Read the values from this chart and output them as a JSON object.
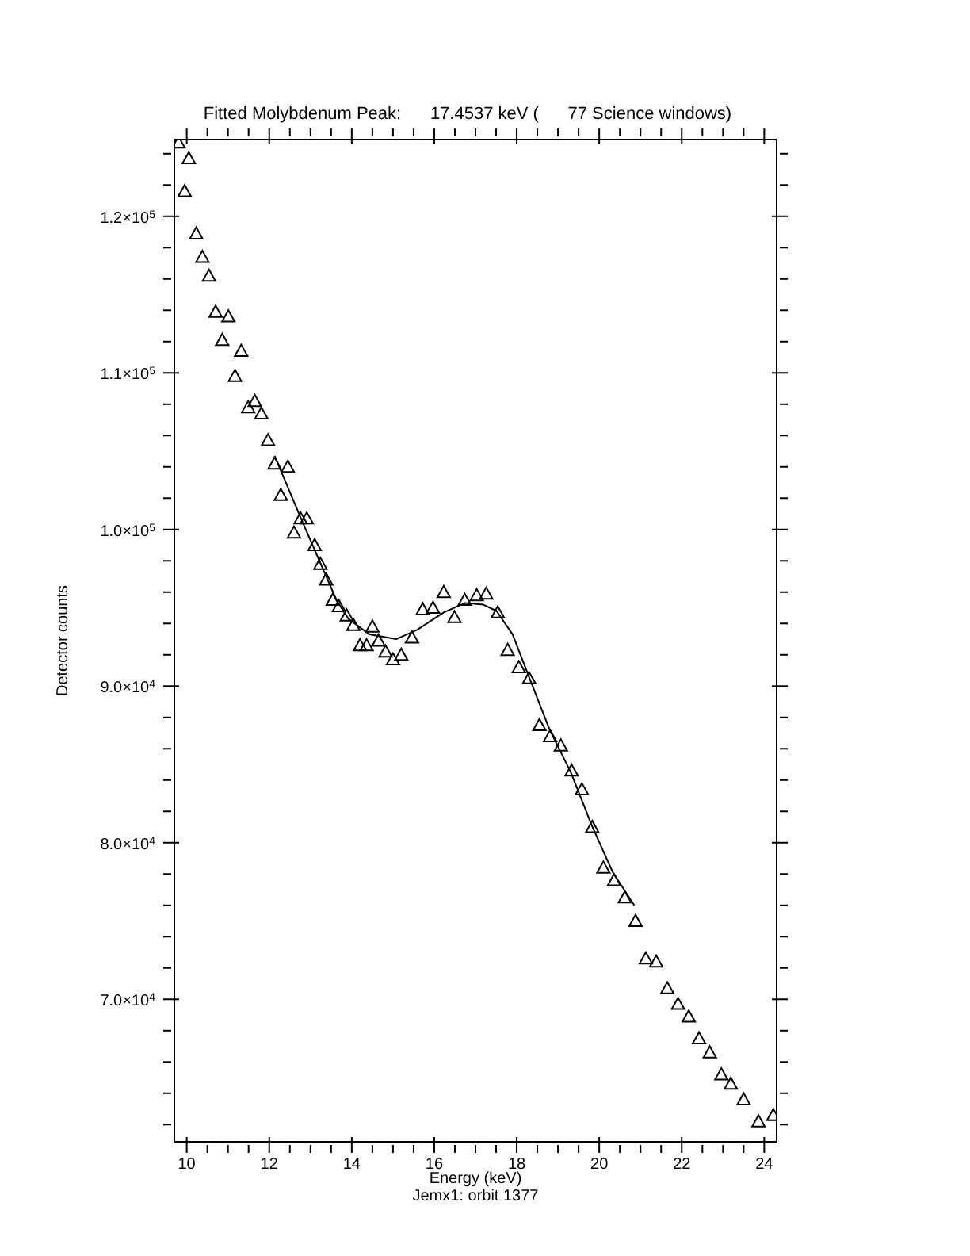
{
  "chart_data": {
    "type": "scatter",
    "title": "Fitted Molybdenum Peak:      17.4537 keV (      77 Science windows)",
    "xlabel": "Energy (keV)",
    "ylabel": "Detector counts",
    "annotations": [
      "Jemx1: orbit 1377"
    ],
    "marker": "triangle",
    "legend": false,
    "xlim": [
      9.7,
      24.3
    ],
    "ylim": [
      60900,
      124900
    ],
    "xticks": [
      10,
      {
        "value": 10.5,
        "label": null
      },
      {
        "value": 11,
        "label": null
      },
      {
        "value": 11.5,
        "label": null
      },
      12,
      {
        "value": 12.5,
        "label": null
      },
      {
        "value": 13,
        "label": null
      },
      {
        "value": 13.5,
        "label": null
      },
      14,
      {
        "value": 14.5,
        "label": null
      },
      {
        "value": 15,
        "label": null
      },
      {
        "value": 15.5,
        "label": null
      },
      16,
      {
        "value": 16.5,
        "label": null
      },
      {
        "value": 17,
        "label": null
      },
      {
        "value": 17.5,
        "label": null
      },
      18,
      {
        "value": 18.5,
        "label": null
      },
      {
        "value": 19,
        "label": null
      },
      {
        "value": 19.5,
        "label": null
      },
      20,
      {
        "value": 20.5,
        "label": null
      },
      {
        "value": 21,
        "label": null
      },
      {
        "value": 21.5,
        "label": null
      },
      22,
      {
        "value": 22.5,
        "label": null
      },
      {
        "value": 23,
        "label": null
      },
      {
        "value": 23.5,
        "label": null
      },
      24
    ],
    "yticks": [
      {
        "value": 62000,
        "label": null
      },
      {
        "value": 64000,
        "label": null
      },
      {
        "value": 66000,
        "label": null
      },
      {
        "value": 68000,
        "label": null
      },
      {
        "value": 70000,
        "label": "7.0×10$^{4}$"
      },
      {
        "value": 72000,
        "label": null
      },
      {
        "value": 74000,
        "label": null
      },
      {
        "value": 76000,
        "label": null
      },
      {
        "value": 78000,
        "label": null
      },
      {
        "value": 80000,
        "label": "8.0×10$^{4}$"
      },
      {
        "value": 82000,
        "label": null
      },
      {
        "value": 84000,
        "label": null
      },
      {
        "value": 86000,
        "label": null
      },
      {
        "value": 88000,
        "label": null
      },
      {
        "value": 90000,
        "label": "9.0×10$^{4}$"
      },
      {
        "value": 92000,
        "label": null
      },
      {
        "value": 94000,
        "label": null
      },
      {
        "value": 96000,
        "label": null
      },
      {
        "value": 98000,
        "label": null
      },
      {
        "value": 100000,
        "label": "1.0×10$^{5}$"
      },
      {
        "value": 102000,
        "label": null
      },
      {
        "value": 104000,
        "label": null
      },
      {
        "value": 106000,
        "label": null
      },
      {
        "value": 108000,
        "label": null
      },
      {
        "value": 110000,
        "label": "1.1×10$^{5}$"
      },
      {
        "value": 112000,
        "label": null
      },
      {
        "value": 114000,
        "label": null
      },
      {
        "value": 116000,
        "label": null
      },
      {
        "value": 118000,
        "label": null
      },
      {
        "value": 120000,
        "label": "1.2×10$^{5}$"
      },
      {
        "value": 122000,
        "label": null
      },
      {
        "value": 124000,
        "label": null
      }
    ],
    "series": [
      {
        "color": "#000000",
        "x": [
          9.8,
          9.95,
          10.05,
          10.23,
          10.38,
          10.54,
          10.7,
          10.86,
          11.01,
          11.17,
          11.32,
          11.49,
          11.65,
          11.81,
          11.97,
          12.13,
          12.28,
          12.45,
          12.6,
          12.76,
          12.91,
          13.1,
          13.24,
          13.38,
          13.54,
          13.69,
          13.88,
          14.04,
          14.2,
          14.36,
          14.5,
          14.65,
          14.82,
          15.0,
          15.2,
          15.46,
          15.72,
          15.97,
          16.23,
          16.49,
          16.74,
          17.03,
          17.26,
          17.54,
          17.78,
          18.05,
          18.3,
          18.55,
          18.81,
          19.07,
          19.33,
          19.58,
          19.83,
          20.1,
          20.36,
          20.62,
          20.88,
          21.13,
          21.38,
          21.65,
          21.91,
          22.17,
          22.42,
          22.68,
          22.96,
          23.19,
          23.5,
          23.86,
          24.22
        ],
        "values": [
          124700,
          121600,
          123700,
          118900,
          117400,
          116200,
          113900,
          112100,
          113600,
          109800,
          111400,
          107800,
          108200,
          107400,
          105700,
          104200,
          102200,
          104000,
          99800,
          100700,
          100700,
          99000,
          97800,
          96800,
          95500,
          95100,
          94500,
          93900,
          92600,
          92600,
          93800,
          92900,
          92200,
          91700,
          92000,
          93100,
          94900,
          95000,
          96000,
          94400,
          95500,
          95800,
          95900,
          94700,
          92300,
          91200,
          90500,
          87500,
          86800,
          86200,
          84600,
          83400,
          81000,
          78400,
          77600,
          76500,
          75000,
          72600,
          72400,
          70700,
          69700,
          68900,
          67500,
          66600,
          65200,
          64600,
          63600,
          62200,
          62600
        ]
      },
      {
        "type": "line",
        "color": "#000000",
        "marker": "none",
        "x": [
          12.13,
          12.77,
          13.63,
          13.92,
          14.43,
          15.08,
          15.59,
          16.23,
          16.74,
          17.19,
          17.51,
          17.9,
          18.28,
          18.8,
          19.31,
          19.82,
          20.33,
          20.85
        ],
        "values": [
          104700,
          100700,
          95500,
          94300,
          93300,
          93000,
          93600,
          94700,
          95300,
          95200,
          94800,
          93300,
          90700,
          87200,
          84500,
          81100,
          78100,
          76000
        ]
      }
    ]
  }
}
